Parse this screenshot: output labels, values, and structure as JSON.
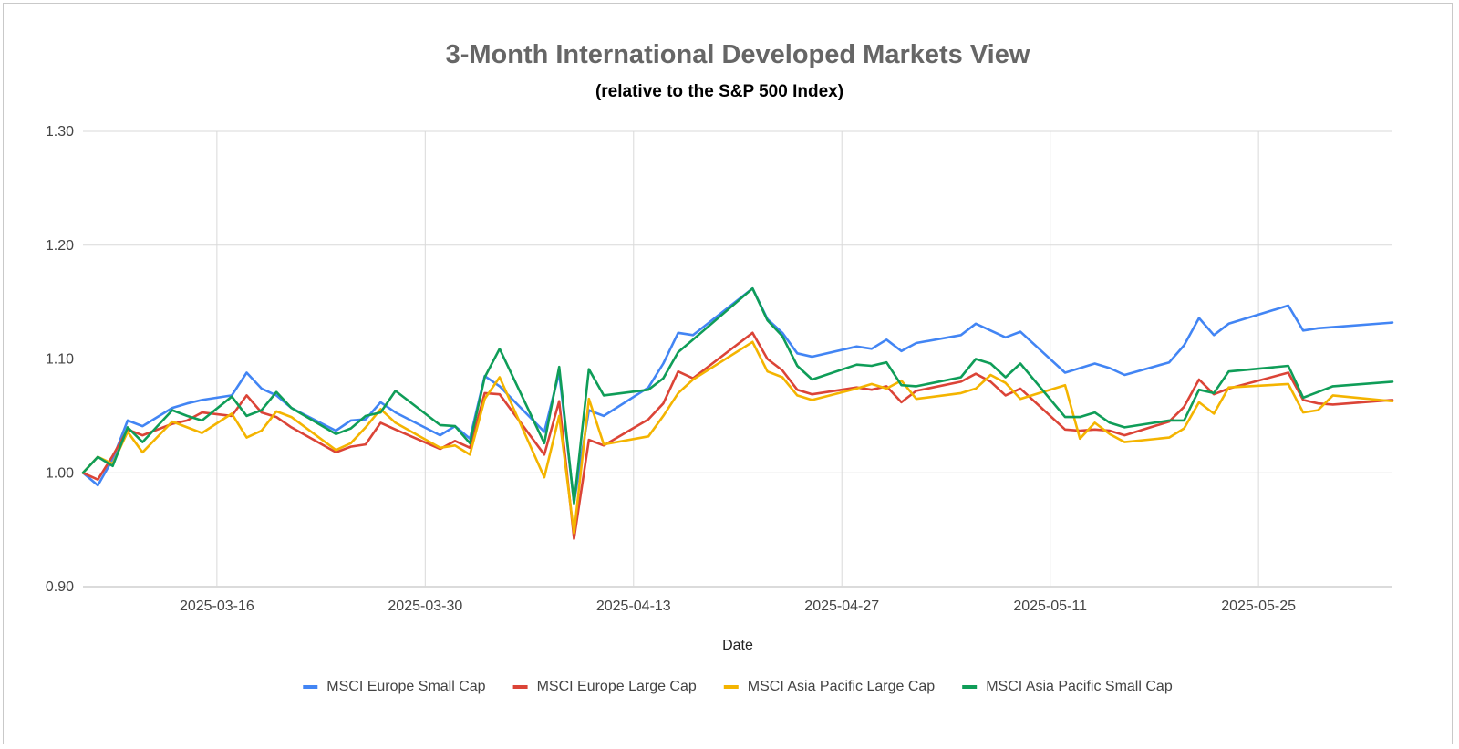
{
  "chart_data": {
    "type": "line",
    "title": "3-Month International Developed Markets View",
    "subtitle": "(relative to the S&P 500 Index)",
    "xlabel": "Date",
    "ylabel": "",
    "ylim": [
      0.9,
      1.3
    ],
    "yticks": [
      "0.90",
      "1.00",
      "1.10",
      "1.20",
      "1.30"
    ],
    "xlim": [
      "2025-03-07",
      "2025-06-03"
    ],
    "xticks": [
      "2025-03-16",
      "2025-03-30",
      "2025-04-13",
      "2025-04-27",
      "2025-05-11",
      "2025-05-25"
    ],
    "grid": true,
    "legend_position": "bottom",
    "x": [
      "2025-03-07",
      "2025-03-08",
      "2025-03-09",
      "2025-03-10",
      "2025-03-11",
      "2025-03-13",
      "2025-03-14",
      "2025-03-15",
      "2025-03-17",
      "2025-03-18",
      "2025-03-19",
      "2025-03-20",
      "2025-03-21",
      "2025-03-24",
      "2025-03-25",
      "2025-03-26",
      "2025-03-27",
      "2025-03-28",
      "2025-03-31",
      "2025-04-01",
      "2025-04-02",
      "2025-04-03",
      "2025-04-04",
      "2025-04-07",
      "2025-04-08",
      "2025-04-09",
      "2025-04-10",
      "2025-04-11",
      "2025-04-14",
      "2025-04-15",
      "2025-04-16",
      "2025-04-17",
      "2025-04-21",
      "2025-04-22",
      "2025-04-23",
      "2025-04-24",
      "2025-04-25",
      "2025-04-28",
      "2025-04-29",
      "2025-04-30",
      "2025-05-01",
      "2025-05-02",
      "2025-05-05",
      "2025-05-06",
      "2025-05-07",
      "2025-05-08",
      "2025-05-09",
      "2025-05-12",
      "2025-05-13",
      "2025-05-14",
      "2025-05-15",
      "2025-05-16",
      "2025-05-19",
      "2025-05-20",
      "2025-05-21",
      "2025-05-22",
      "2025-05-23",
      "2025-05-27",
      "2025-05-28",
      "2025-05-29",
      "2025-05-30",
      "2025-06-03"
    ],
    "series": [
      {
        "name": "MSCI Europe Small Cap",
        "color": "#4285F4",
        "values": [
          1.0,
          0.989,
          1.012,
          1.046,
          1.041,
          1.057,
          1.061,
          1.064,
          1.068,
          1.088,
          1.074,
          1.068,
          1.057,
          1.037,
          1.046,
          1.047,
          1.062,
          1.053,
          1.033,
          1.041,
          1.03,
          1.085,
          1.076,
          1.036,
          1.088,
          0.974,
          1.055,
          1.05,
          1.075,
          1.096,
          1.123,
          1.121,
          1.162,
          1.135,
          1.123,
          1.105,
          1.102,
          1.111,
          1.109,
          1.117,
          1.107,
          1.114,
          1.121,
          1.131,
          1.125,
          1.119,
          1.124,
          1.088,
          1.092,
          1.096,
          1.092,
          1.086,
          1.097,
          1.112,
          1.136,
          1.121,
          1.131,
          1.147,
          1.125,
          1.127,
          1.128,
          1.132
        ]
      },
      {
        "name": "MSCI Europe Large Cap",
        "color": "#DB4437",
        "values": [
          1.0,
          0.994,
          1.015,
          1.038,
          1.033,
          1.043,
          1.046,
          1.053,
          1.05,
          1.068,
          1.053,
          1.049,
          1.04,
          1.018,
          1.023,
          1.025,
          1.044,
          1.038,
          1.021,
          1.028,
          1.022,
          1.07,
          1.069,
          1.016,
          1.063,
          0.942,
          1.029,
          1.024,
          1.047,
          1.061,
          1.089,
          1.083,
          1.123,
          1.1,
          1.09,
          1.073,
          1.069,
          1.075,
          1.073,
          1.076,
          1.062,
          1.072,
          1.08,
          1.087,
          1.08,
          1.068,
          1.074,
          1.038,
          1.037,
          1.038,
          1.037,
          1.033,
          1.045,
          1.058,
          1.082,
          1.069,
          1.074,
          1.088,
          1.064,
          1.061,
          1.06,
          1.064
        ]
      },
      {
        "name": "MSCI Asia Pacific Large Cap",
        "color": "#F4B400",
        "values": [
          1.0,
          1.014,
          1.008,
          1.036,
          1.018,
          1.045,
          1.04,
          1.035,
          1.052,
          1.031,
          1.037,
          1.054,
          1.049,
          1.02,
          1.026,
          1.04,
          1.056,
          1.044,
          1.022,
          1.024,
          1.016,
          1.065,
          1.084,
          0.996,
          1.05,
          0.947,
          1.065,
          1.025,
          1.032,
          1.05,
          1.07,
          1.082,
          1.115,
          1.089,
          1.084,
          1.068,
          1.064,
          1.074,
          1.078,
          1.074,
          1.081,
          1.065,
          1.07,
          1.074,
          1.086,
          1.079,
          1.065,
          1.077,
          1.03,
          1.044,
          1.034,
          1.027,
          1.031,
          1.039,
          1.062,
          1.052,
          1.075,
          1.078,
          1.053,
          1.055,
          1.068,
          1.063
        ]
      },
      {
        "name": "MSCI Asia Pacific Small Cap",
        "color": "#0F9D58",
        "values": [
          1.0,
          1.014,
          1.006,
          1.04,
          1.027,
          1.055,
          1.05,
          1.046,
          1.067,
          1.05,
          1.055,
          1.071,
          1.057,
          1.034,
          1.039,
          1.05,
          1.053,
          1.072,
          1.042,
          1.041,
          1.026,
          1.084,
          1.109,
          1.026,
          1.093,
          0.973,
          1.091,
          1.068,
          1.073,
          1.083,
          1.106,
          1.117,
          1.162,
          1.134,
          1.12,
          1.094,
          1.082,
          1.095,
          1.094,
          1.097,
          1.077,
          1.076,
          1.084,
          1.1,
          1.096,
          1.084,
          1.096,
          1.049,
          1.049,
          1.053,
          1.044,
          1.04,
          1.046,
          1.046,
          1.073,
          1.07,
          1.089,
          1.094,
          1.066,
          1.071,
          1.076,
          1.08
        ]
      }
    ]
  }
}
